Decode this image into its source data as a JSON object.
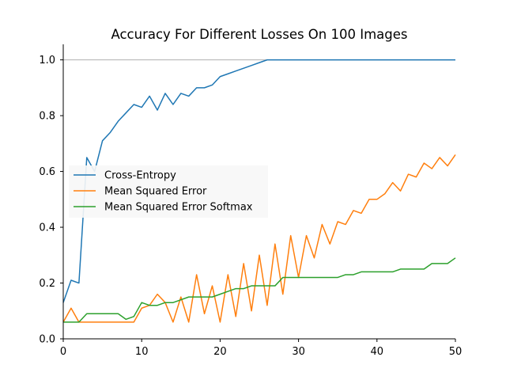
{
  "chart_data": {
    "type": "line",
    "title": "Accuracy For Different Losses On 100 Images",
    "xlabel": "",
    "ylabel": "",
    "xlim": [
      0,
      50
    ],
    "ylim": [
      0.0,
      1.05
    ],
    "x_ticks": [
      0,
      10,
      20,
      30,
      40,
      50
    ],
    "x_tick_labels": [
      "0",
      "10",
      "20",
      "30",
      "40",
      "50"
    ],
    "y_ticks": [
      0.0,
      0.2,
      0.4,
      0.6,
      0.8,
      1.0
    ],
    "y_tick_labels": [
      "0.0",
      "0.2",
      "0.4",
      "0.6",
      "0.8",
      "1.0"
    ],
    "grid": false,
    "reference_line": {
      "y": 1.0,
      "color": "#b0b0b0"
    },
    "legend_position": "center-left",
    "x": [
      0,
      1,
      2,
      3,
      4,
      5,
      6,
      7,
      8,
      9,
      10,
      11,
      12,
      13,
      14,
      15,
      16,
      17,
      18,
      19,
      20,
      21,
      22,
      23,
      24,
      25,
      26,
      27,
      28,
      29,
      30,
      31,
      32,
      33,
      34,
      35,
      36,
      37,
      38,
      39,
      40,
      41,
      42,
      43,
      44,
      45,
      46,
      47,
      48,
      49,
      50
    ],
    "series": [
      {
        "name": "Cross-Entropy",
        "color": "#1f77b4",
        "values": [
          0.13,
          0.21,
          0.2,
          0.65,
          0.6,
          0.71,
          0.74,
          0.78,
          0.81,
          0.84,
          0.83,
          0.87,
          0.82,
          0.88,
          0.84,
          0.88,
          0.87,
          0.9,
          0.9,
          0.91,
          0.94,
          0.95,
          0.96,
          0.97,
          0.98,
          0.99,
          1.0,
          1.0,
          1.0,
          1.0,
          1.0,
          1.0,
          1.0,
          1.0,
          1.0,
          1.0,
          1.0,
          1.0,
          1.0,
          1.0,
          1.0,
          1.0,
          1.0,
          1.0,
          1.0,
          1.0,
          1.0,
          1.0,
          1.0,
          1.0,
          1.0
        ]
      },
      {
        "name": "Mean Squared Error",
        "color": "#ff7f0e",
        "values": [
          0.06,
          0.11,
          0.06,
          0.06,
          0.06,
          0.06,
          0.06,
          0.06,
          0.06,
          0.06,
          0.11,
          0.12,
          0.16,
          0.13,
          0.06,
          0.15,
          0.06,
          0.23,
          0.09,
          0.19,
          0.06,
          0.23,
          0.08,
          0.27,
          0.1,
          0.3,
          0.12,
          0.34,
          0.16,
          0.37,
          0.22,
          0.37,
          0.29,
          0.41,
          0.34,
          0.42,
          0.41,
          0.46,
          0.45,
          0.5,
          0.5,
          0.52,
          0.56,
          0.53,
          0.59,
          0.58,
          0.63,
          0.61,
          0.65,
          0.62,
          0.66
        ]
      },
      {
        "name": "Mean Squared Error Softmax",
        "color": "#2ca02c",
        "values": [
          0.06,
          0.06,
          0.06,
          0.09,
          0.09,
          0.09,
          0.09,
          0.09,
          0.07,
          0.08,
          0.13,
          0.12,
          0.12,
          0.13,
          0.13,
          0.14,
          0.15,
          0.15,
          0.15,
          0.15,
          0.16,
          0.17,
          0.18,
          0.18,
          0.19,
          0.19,
          0.19,
          0.19,
          0.22,
          0.22,
          0.22,
          0.22,
          0.22,
          0.22,
          0.22,
          0.22,
          0.23,
          0.23,
          0.24,
          0.24,
          0.24,
          0.24,
          0.24,
          0.25,
          0.25,
          0.25,
          0.25,
          0.27,
          0.27,
          0.27,
          0.29
        ]
      }
    ]
  }
}
